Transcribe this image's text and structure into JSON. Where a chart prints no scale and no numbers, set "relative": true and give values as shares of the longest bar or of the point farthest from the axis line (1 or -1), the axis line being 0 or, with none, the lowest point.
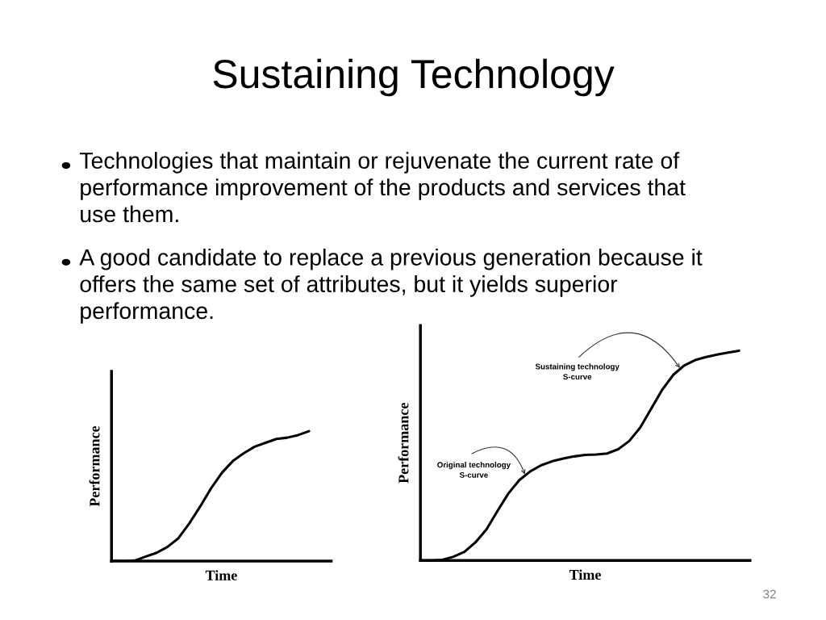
{
  "chart_data": [
    {
      "type": "line",
      "title": "Sustaining Technology",
      "xlabel": "Time",
      "ylabel": "Performance",
      "relative": true,
      "color": "#000000",
      "categories": [
        null,
        null,
        null,
        null,
        null,
        null,
        null,
        null,
        null,
        null,
        null,
        null,
        null,
        null,
        null,
        null,
        null,
        null,
        null,
        null,
        null
      ],
      "values": [
        0,
        0,
        0.004,
        0.035,
        0.064,
        0.11,
        0.176,
        0.29,
        0.42,
        0.56,
        0.68,
        0.77,
        0.83,
        0.88,
        0.91,
        0.94,
        0.95,
        0.97,
        1.0,
        null,
        null
      ],
      "annotations": [
        "Technologies that maintain or rejuvenate the current rate of\nperformance improvement of the products and services that\nuse them.",
        "A good candidate to replace a previous generation because it\noffers the same set of attributes, but it yields superior\nperformance.",
        "32"
      ]
    },
    {
      "type": "line",
      "xlabel": "Time",
      "ylabel": "Performance",
      "relative": true,
      "color": "#000000",
      "categories": [
        null,
        null,
        null,
        null,
        null,
        null,
        null,
        null,
        null,
        null,
        null,
        null,
        null,
        null,
        null,
        null,
        null,
        null,
        null,
        null,
        null,
        null,
        null,
        null,
        null,
        null,
        null,
        null,
        null,
        null,
        null
      ],
      "values": [
        0,
        0,
        0.003,
        0.018,
        0.041,
        0.086,
        0.147,
        0.235,
        0.319,
        0.383,
        0.425,
        0.454,
        0.473,
        0.486,
        0.496,
        0.503,
        0.505,
        0.51,
        0.53,
        0.569,
        0.633,
        0.723,
        0.813,
        0.884,
        0.929,
        0.955,
        0.97,
        0.981,
        0.991,
        1.0,
        null
      ],
      "annotations": [
        "Original technology\nS-curve",
        "Sustaining technology\nS-curve"
      ]
    }
  ]
}
